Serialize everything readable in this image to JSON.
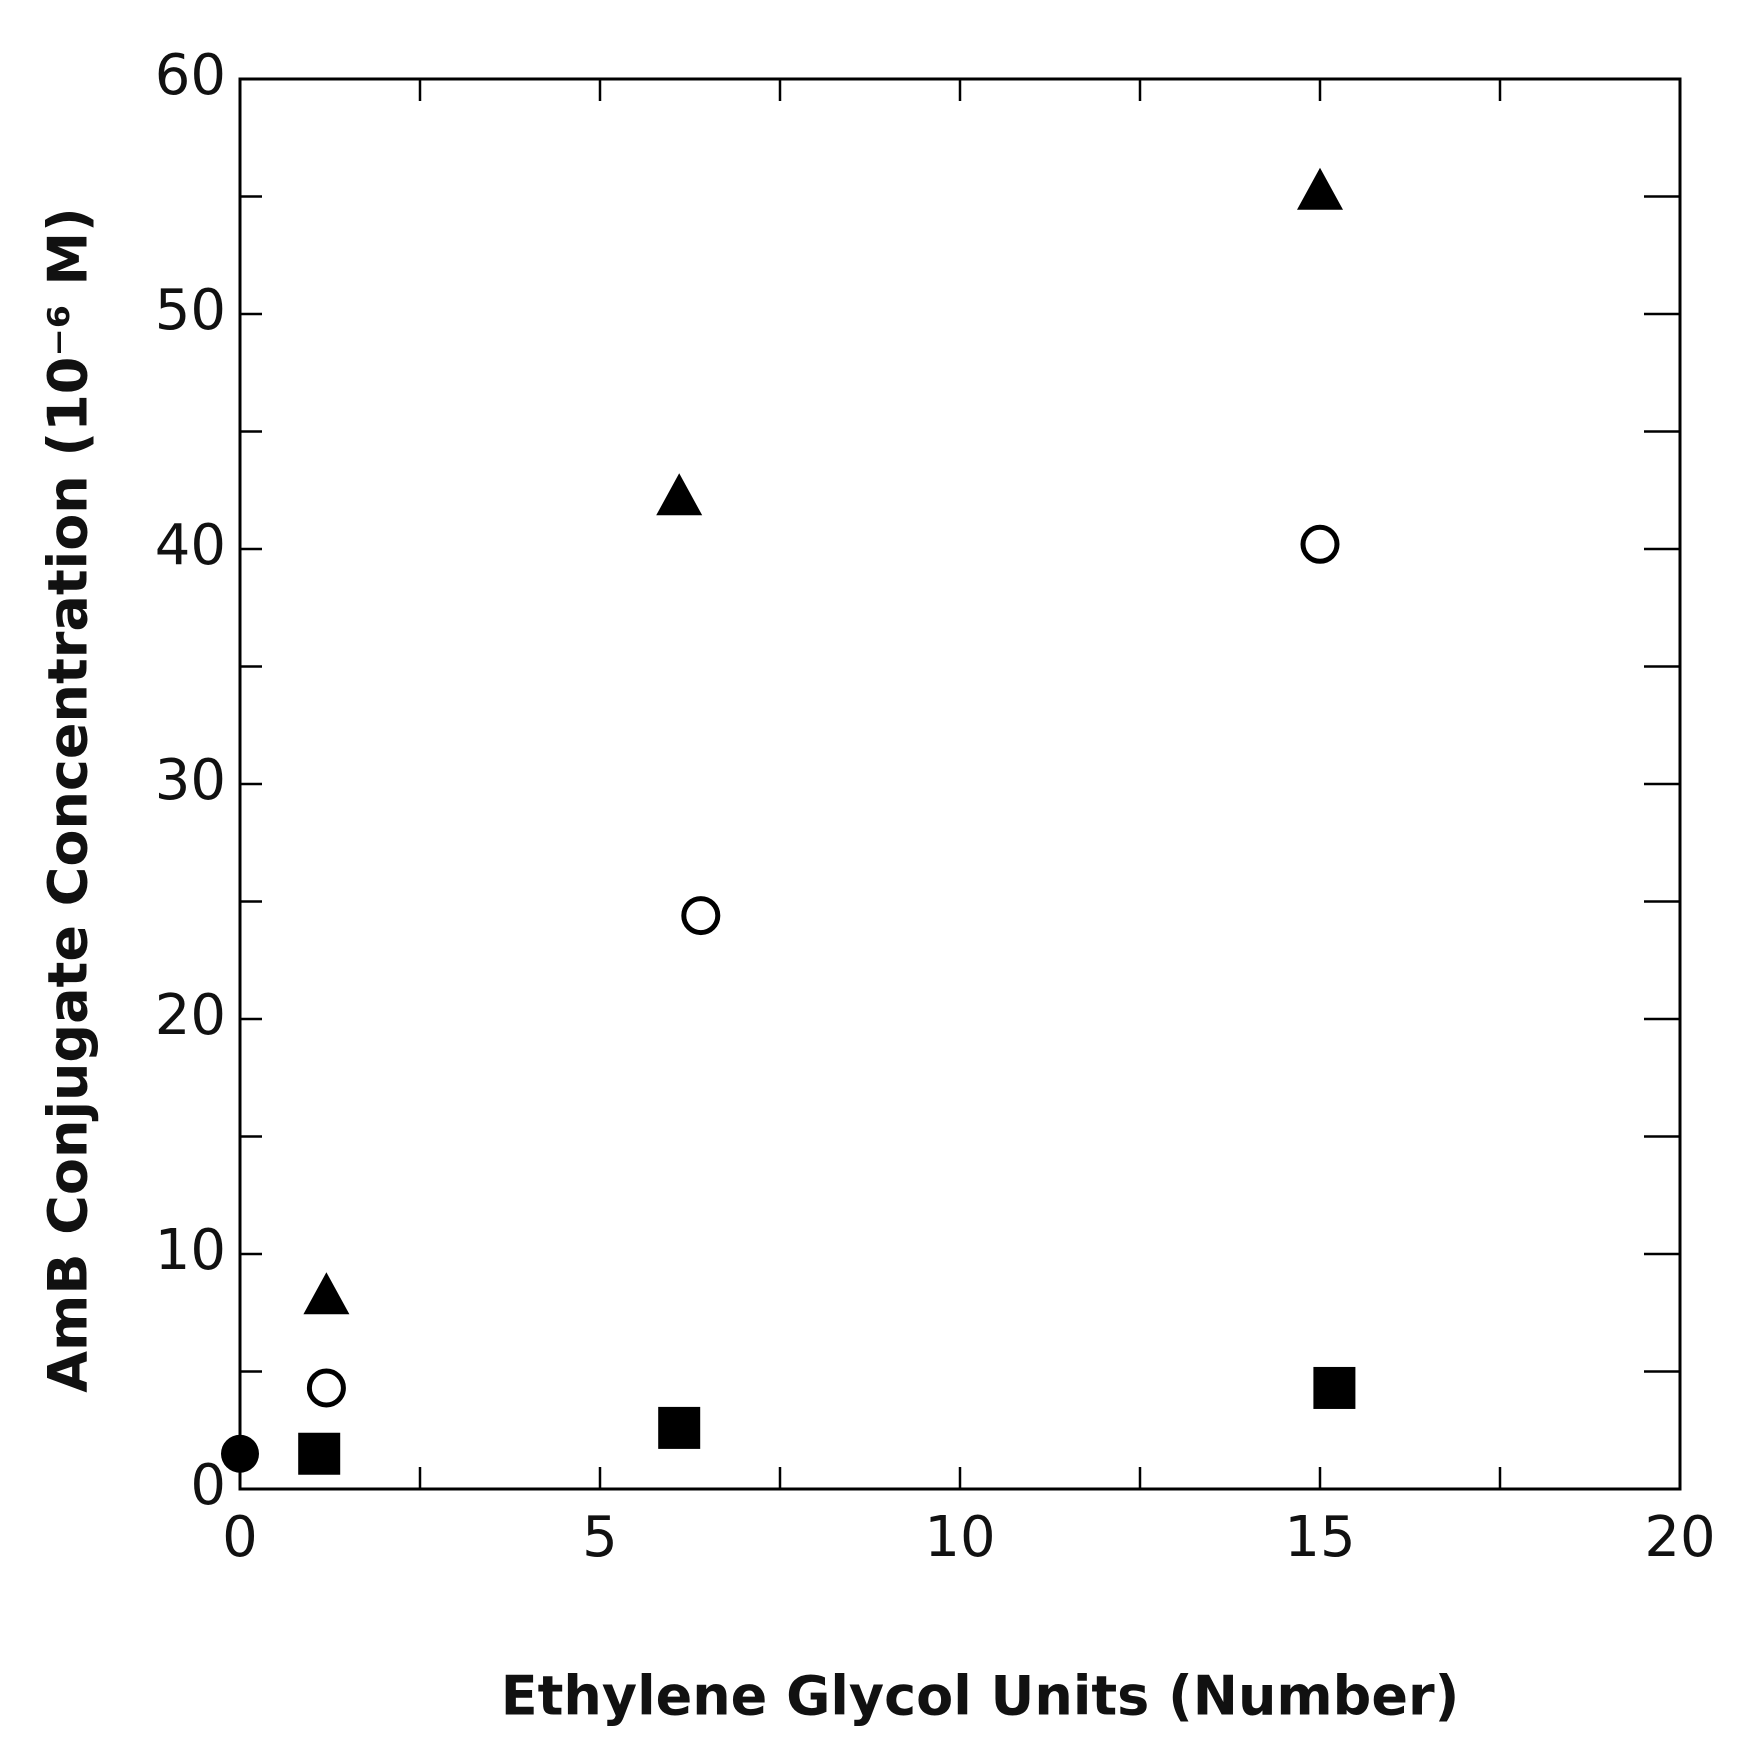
{
  "chart_data": {
    "type": "scatter",
    "xlabel": "Ethylene Glycol Units (Number)",
    "ylabel": "AmB Conjugate Concentration (10⁻⁶ M)",
    "xlim": [
      0,
      20
    ],
    "ylim": [
      0,
      60
    ],
    "xticks": [
      0,
      5,
      10,
      15,
      20
    ],
    "yticks": [
      0,
      10,
      20,
      30,
      40,
      50,
      60
    ],
    "xminorticks": [
      2.5,
      7.5,
      12.5,
      17.5
    ],
    "yminorticks": [
      5,
      15,
      25,
      35,
      45,
      55
    ],
    "series": [
      {
        "marker": "filled-circle",
        "color": "#000000",
        "x": [
          0
        ],
        "values": [
          1.5
        ]
      },
      {
        "marker": "filled-square",
        "color": "#000000",
        "x": [
          1.1,
          6.1,
          15.2
        ],
        "values": [
          1.5,
          2.6,
          4.3
        ]
      },
      {
        "marker": "open-circle",
        "color": "#000000",
        "x": [
          1.2,
          6.4,
          15
        ],
        "values": [
          4.3,
          24.4,
          40.2
        ]
      },
      {
        "marker": "filled-triangle",
        "color": "#000000",
        "x": [
          1.2,
          6.1,
          15
        ],
        "values": [
          8.2,
          42.2,
          55.2
        ]
      }
    ]
  }
}
